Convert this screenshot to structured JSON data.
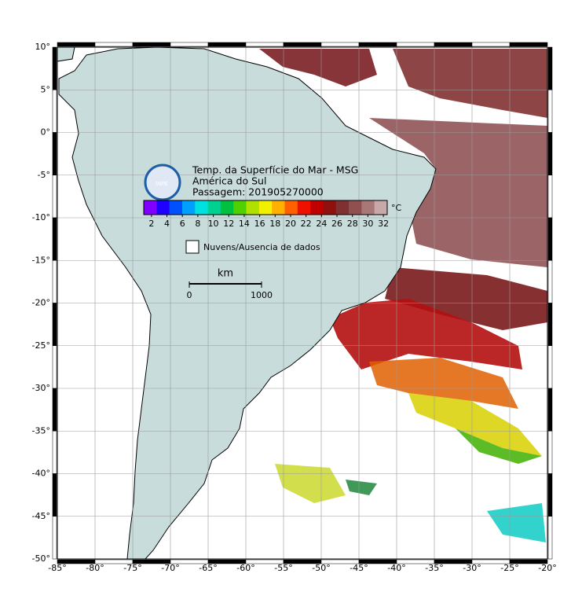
{
  "map": {
    "xlim": [
      -85,
      -20
    ],
    "ylim": [
      -50,
      10
    ],
    "xticks": [
      {
        "value": -85,
        "label": "-85°"
      },
      {
        "value": -80,
        "label": "-80°"
      },
      {
        "value": -75,
        "label": "-75°"
      },
      {
        "value": -70,
        "label": "-70°"
      },
      {
        "value": -65,
        "label": "-65°"
      },
      {
        "value": -60,
        "label": "-60°"
      },
      {
        "value": -55,
        "label": "-55°"
      },
      {
        "value": -50,
        "label": "-50°"
      },
      {
        "value": -45,
        "label": "-45°"
      },
      {
        "value": -40,
        "label": "-40°"
      },
      {
        "value": -35,
        "label": "-35°"
      },
      {
        "value": -30,
        "label": "-30°"
      },
      {
        "value": -25,
        "label": "-25°"
      },
      {
        "value": -20,
        "label": "-20°"
      }
    ],
    "yticks": [
      {
        "value": 10,
        "label": "10°"
      },
      {
        "value": 5,
        "label": "5°"
      },
      {
        "value": 0,
        "label": "0°"
      },
      {
        "value": -5,
        "label": "-5°"
      },
      {
        "value": -10,
        "label": "-10°"
      },
      {
        "value": -15,
        "label": "-15°"
      },
      {
        "value": -20,
        "label": "-20°"
      },
      {
        "value": -25,
        "label": "-25°"
      },
      {
        "value": -30,
        "label": "-30°"
      },
      {
        "value": -35,
        "label": "-35°"
      },
      {
        "value": -40,
        "label": "-40°"
      },
      {
        "value": -45,
        "label": "-45°"
      },
      {
        "value": -50,
        "label": "-50°"
      }
    ],
    "grid": true,
    "logo": "INPE",
    "title_lines": [
      "Temp. da Superfície do Mar - MSG",
      "América do Sul",
      "Passagem: 201905270000"
    ],
    "colorbar": {
      "unit": "°C",
      "lim": [
        1,
        32.5
      ],
      "ticks": [
        2,
        4,
        6,
        8,
        10,
        12,
        14,
        16,
        18,
        20,
        22,
        24,
        26,
        28,
        30,
        32
      ],
      "colors": [
        "#8000ff",
        "#2000ff",
        "#0050ff",
        "#00a0ff",
        "#00e0e0",
        "#00d090",
        "#00c040",
        "#50d000",
        "#b0e000",
        "#f0f000",
        "#ffb000",
        "#ff6000",
        "#f01000",
        "#c00000",
        "#901010",
        "#803030",
        "#905050",
        "#a87878",
        "#c8a8a8"
      ]
    },
    "legend": "Nuvens/Ausencia de dados",
    "scale_bar": {
      "label": "km",
      "ticks": [
        0,
        1000
      ]
    }
  }
}
